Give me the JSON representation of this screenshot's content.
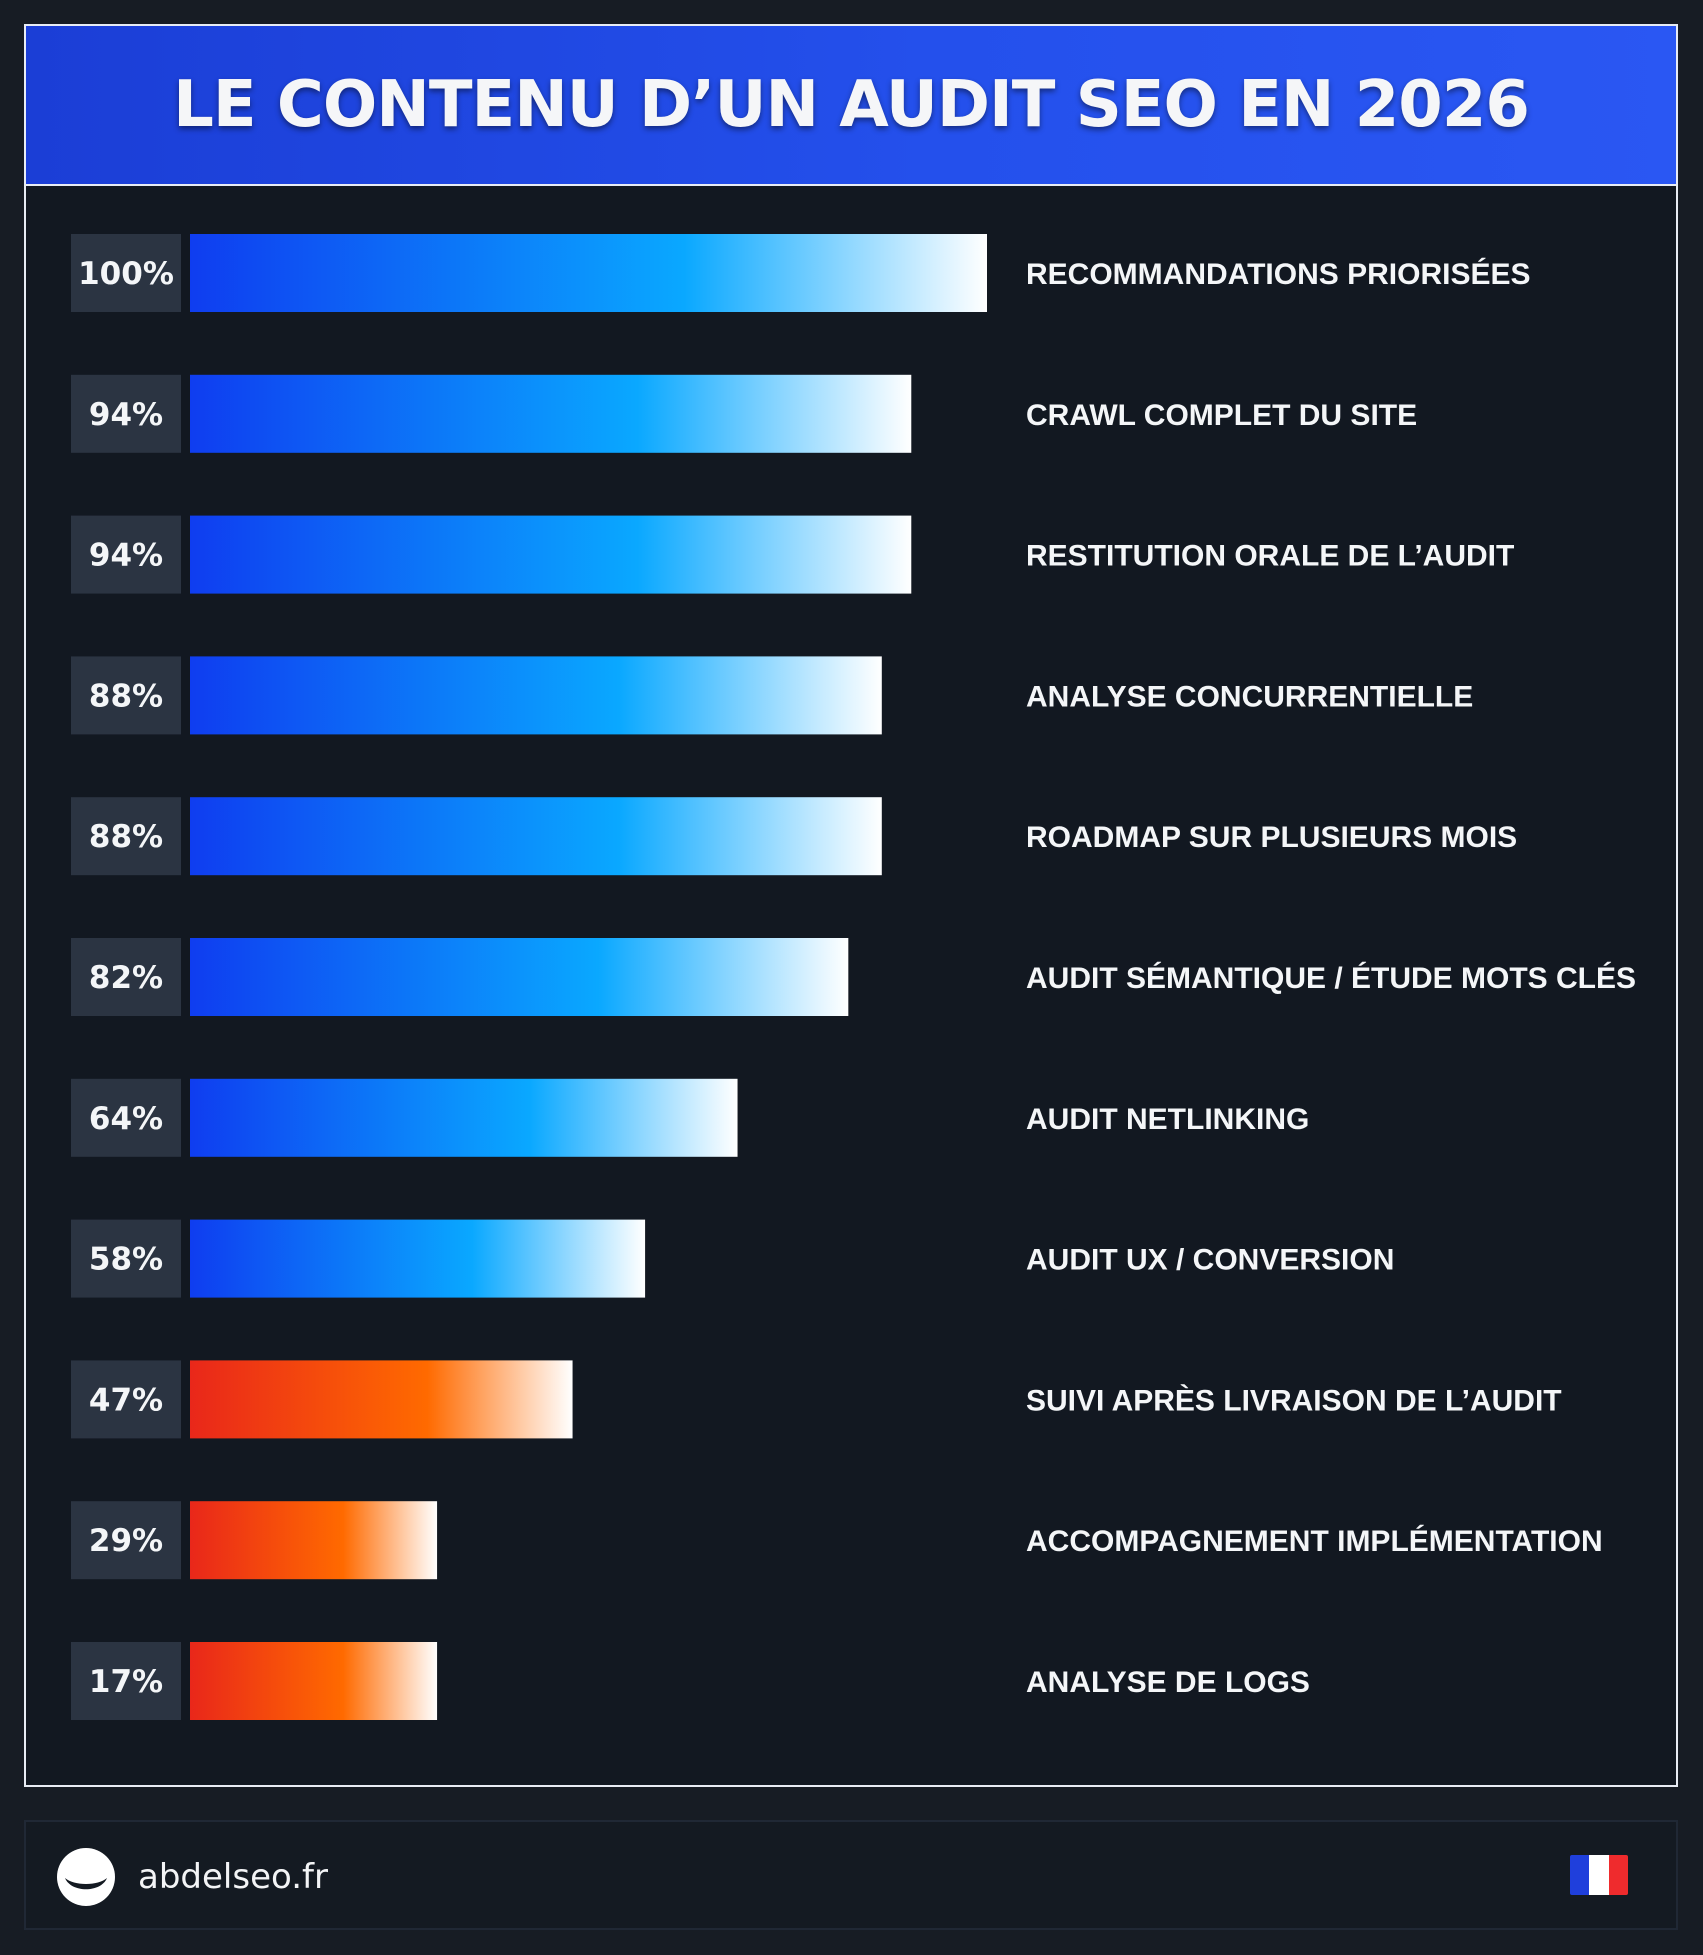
{
  "header": {
    "title": "LE CONTENU D’UN AUDIT SEO EN 2026"
  },
  "chart_data": {
    "type": "bar",
    "orientation": "horizontal",
    "categories": [
      "RECOMMANDATIONS PRIORISÉES",
      "CRAWL COMPLET DU SITE",
      "RESTITUTION ORALE DE L’AUDIT",
      "ANALYSE CONCURRENTIELLE",
      "ROADMAP SUR PLUSIEURS MOIS",
      "AUDIT SÉMANTIQUE / ÉTUDE MOTS CLÉS",
      "AUDIT NETLINKING",
      "AUDIT UX / CONVERSION",
      "SUIVI APRÈS LIVRAISON DE L’AUDIT",
      "ACCOMPAGNEMENT IMPLÉMENTATION",
      "ANALYSE DE LOGS"
    ],
    "values": [
      100,
      94,
      94,
      88,
      88,
      82,
      64,
      58,
      47,
      29,
      17
    ],
    "value_labels": [
      "100%",
      "94%",
      "94%",
      "88%",
      "88%",
      "82%",
      "64%",
      "58%",
      "47%",
      "29%",
      "17%"
    ],
    "bar_lengths": [
      100,
      90.5,
      90.5,
      86.8,
      86.8,
      82.6,
      68.7,
      57.1,
      48,
      31,
      31
    ],
    "groups": [
      "blue",
      "blue",
      "blue",
      "blue",
      "blue",
      "blue",
      "blue",
      "blue",
      "orange",
      "orange",
      "orange"
    ],
    "title": "LE CONTENU D’UN AUDIT SEO EN 2026",
    "xlabel": "",
    "ylabel": "",
    "xlim": [
      0,
      100
    ],
    "grid": false,
    "legend": "none",
    "colors": {
      "blue_start": "#0f3df0",
      "blue_mid": "#0aa8ff",
      "blue_end": "#ffffff",
      "orange_start": "#e9271a",
      "orange_mid": "#ff6a00",
      "orange_end": "#ffffff",
      "label_box": "#2b3442",
      "label_text": "#f4f6f8",
      "category_text": "#f4f6f8"
    }
  },
  "footer": {
    "site": "abdelseo.fr",
    "logo_icon": "abdelseo-logo-icon",
    "flag_icon": "france-flag-icon",
    "flag_colors": [
      "#1f3fdc",
      "#ffffff",
      "#ef2b2d"
    ]
  }
}
